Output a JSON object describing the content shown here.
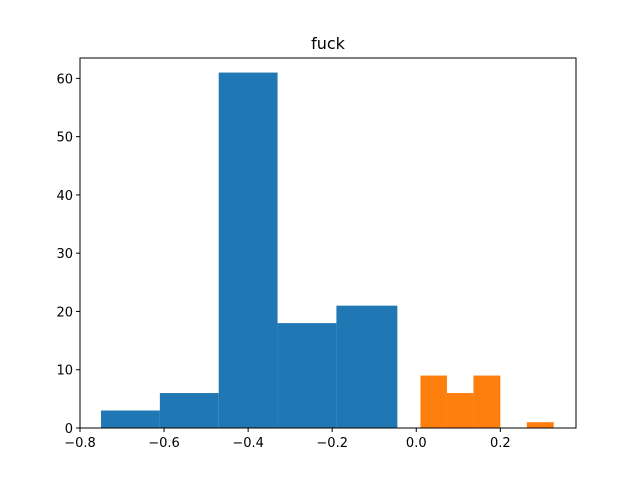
{
  "chart_data": {
    "type": "bar",
    "title": "fuck",
    "xlabel": "",
    "ylabel": "",
    "xlim": [
      -0.8,
      0.38
    ],
    "ylim": [
      0,
      63.5
    ],
    "grid": false,
    "legend": "none",
    "xticks": [
      -0.8,
      -0.6,
      -0.4,
      -0.2,
      0.0,
      0.2
    ],
    "xtick_labels": [
      "−0.8",
      "−0.6",
      "−0.4",
      "−0.2",
      "0.0",
      "0.2"
    ],
    "yticks": [
      0,
      10,
      20,
      30,
      40,
      50,
      60
    ],
    "ytick_labels": [
      "0",
      "10",
      "20",
      "30",
      "40",
      "50",
      "60"
    ],
    "series": [
      {
        "color": "#1f77b4",
        "bins": [
          {
            "x0": -0.75,
            "x1": -0.61,
            "value": 3
          },
          {
            "x0": -0.61,
            "x1": -0.47,
            "value": 6
          },
          {
            "x0": -0.47,
            "x1": -0.33,
            "value": 61
          },
          {
            "x0": -0.33,
            "x1": -0.19,
            "value": 18
          },
          {
            "x0": -0.19,
            "x1": -0.045,
            "value": 21
          }
        ]
      },
      {
        "color": "#ff7f0e",
        "bins": [
          {
            "x0": 0.01,
            "x1": 0.073,
            "value": 9
          },
          {
            "x0": 0.073,
            "x1": 0.136,
            "value": 6
          },
          {
            "x0": 0.136,
            "x1": 0.2,
            "value": 9
          },
          {
            "x0": 0.2,
            "x1": 0.263,
            "value": 0
          },
          {
            "x0": 0.263,
            "x1": 0.327,
            "value": 1
          }
        ]
      }
    ]
  }
}
